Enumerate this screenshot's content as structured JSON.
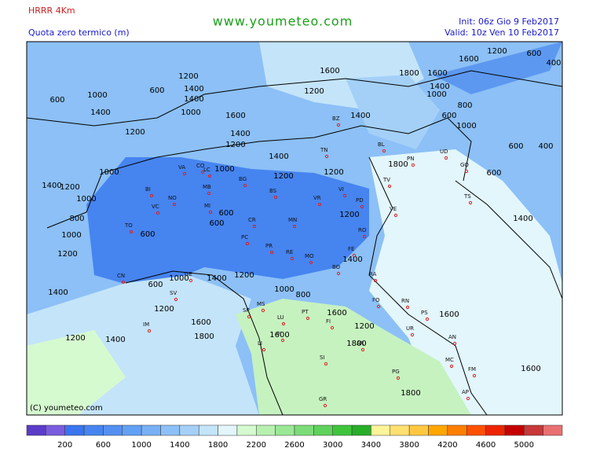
{
  "header": {
    "model": "HRRR 4Km",
    "field": "Quota zero termico (m)",
    "site": "www.youmeteo.com",
    "init": "Init: 06z Gio  9  Feb2017",
    "valid": "Valid: 10z Ven  10 Feb2017"
  },
  "copyright": "(C) youmeteo.com",
  "contour_labels": [
    "1600",
    "1200",
    "600",
    "400",
    "1600",
    "1800",
    "1600",
    "1200",
    "600",
    "1400",
    "1400",
    "1000",
    "1400",
    "1000",
    "600",
    "1400",
    "1200",
    "1000",
    "800",
    "600",
    "1600",
    "1400",
    "1000",
    "1200",
    "1400",
    "1200",
    "600",
    "400",
    "1400",
    "1800",
    "1000",
    "1000",
    "600",
    "1200",
    "1200",
    "1400",
    "1200",
    "1000",
    "600",
    "1200",
    "800",
    "1400",
    "600",
    "600",
    "1000",
    "1200",
    "1400",
    "600",
    "1000",
    "1400",
    "1200",
    "1400",
    "1000",
    "800",
    "1200",
    "1600",
    "1600",
    "1600",
    "1200",
    "1200",
    "1400",
    "1800",
    "1600",
    "1800",
    "1600",
    "1800"
  ],
  "cities": [
    "BZ",
    "TN",
    "BL",
    "PN",
    "UD",
    "GO",
    "VA",
    "CO",
    "LC",
    "BG",
    "BI",
    "MB",
    "NO",
    "VC",
    "MI",
    "BS",
    "VR",
    "VI",
    "TV",
    "PD",
    "VE",
    "TO",
    "CR",
    "PC",
    "MN",
    "RO",
    "PR",
    "RE",
    "MO",
    "FE",
    "BO",
    "RA",
    "CN",
    "GE",
    "SV",
    "IM",
    "SP",
    "MS",
    "LU",
    "PT",
    "FI",
    "PI",
    "LI",
    "FO",
    "RN",
    "PS",
    "UR",
    "AN",
    "SI",
    "AR",
    "MC",
    "FM",
    "PG",
    "GR",
    "AP",
    "TS"
  ],
  "legend": {
    "colors": [
      "#5a3cc8",
      "#7a5ce0",
      "#3a74ee",
      "#4684f0",
      "#5490f2",
      "#62a0f4",
      "#78b0f6",
      "#8cc0f6",
      "#a4d0f8",
      "#c4e4fa",
      "#e2f6fc",
      "#d6fad0",
      "#b8f0b0",
      "#9ae896",
      "#7cdc78",
      "#5ed25a",
      "#40c43c",
      "#28ae28",
      "#fff49a",
      "#ffe070",
      "#ffc840",
      "#ffa600",
      "#ff7e00",
      "#ff5000",
      "#ee2400",
      "#c40000",
      "#c83838",
      "#e87070"
    ],
    "labels": [
      200,
      600,
      1000,
      1400,
      1800,
      2200,
      2600,
      3000,
      3400,
      3800,
      4200,
      4600,
      5000
    ]
  }
}
